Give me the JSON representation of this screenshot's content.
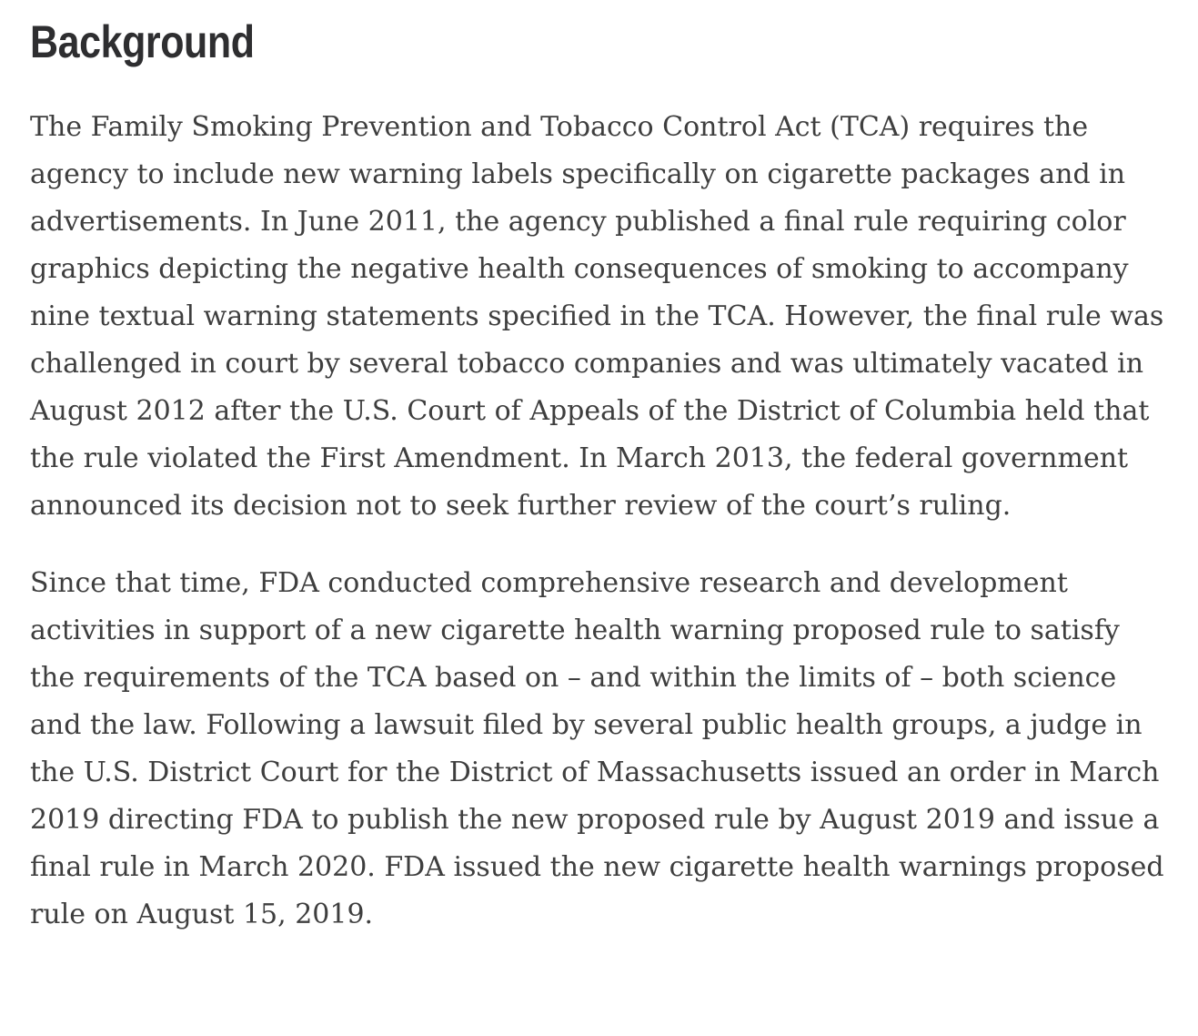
{
  "page": {
    "background_color": "#ffffff",
    "heading_color": "#2e2e30",
    "body_text_color": "#3e3e3e"
  },
  "article": {
    "heading": "Background",
    "paragraphs": [
      "The Family Smoking Prevention and Tobacco Control Act (TCA) requires the agency to include new warning labels specifically on cigarette packages and in advertisements. In June 2011, the agency published a final rule requiring color graphics depicting the negative health consequences of smoking to accompany nine textual warning statements specified in the TCA. However, the final rule was challenged in court by several tobacco companies and was ultimately vacated in August 2012 after the U.S. Court of Appeals of the District of Columbia held that the rule violated the First Amendment. In March 2013, the federal government announced its decision not to seek further review of the court’s ruling.",
      "Since that time, FDA conducted comprehensive research and development activities in support of a new cigarette health warning proposed rule to satisfy the requirements of the TCA based on – and within the limits of – both science and the law. Following a lawsuit filed by several public health groups, a judge in the U.S. District Court for the District of Massachusetts issued an order in March 2019 directing FDA to publish the new proposed rule by August 2019 and issue a final rule in March 2020. FDA issued the new cigarette health warnings proposed rule on August 15, 2019."
    ]
  }
}
